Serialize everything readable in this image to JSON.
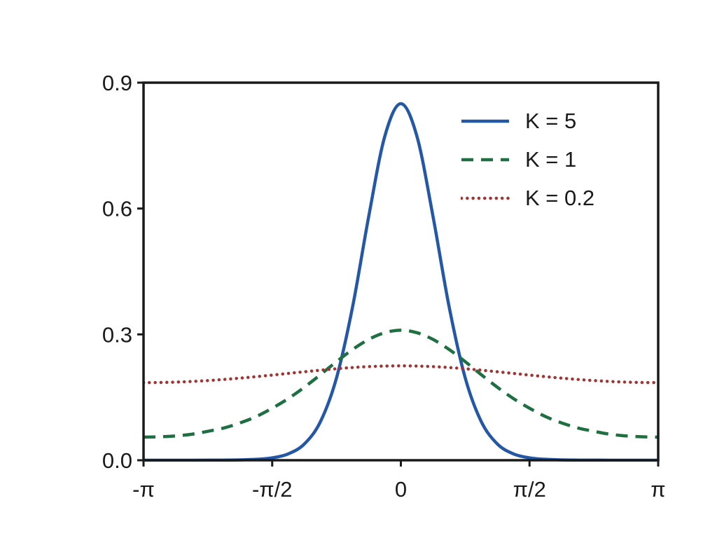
{
  "figure": {
    "background": "#ffffff",
    "frame_color": "#1a1a1a",
    "tick_label_color": "#1a1a1a"
  },
  "chart_data": {
    "type": "line",
    "title": "",
    "xlabel": "",
    "ylabel": "",
    "x_unit": "multiples_of_pi",
    "xlim": [
      -1,
      1
    ],
    "ylim": [
      0,
      0.9
    ],
    "grid": false,
    "x_ticks": [
      {
        "value": -1,
        "label": "-π"
      },
      {
        "value": -0.5,
        "label": "-π/2"
      },
      {
        "value": 0,
        "label": "0"
      },
      {
        "value": 0.5,
        "label": "π/2"
      },
      {
        "value": 1,
        "label": "π"
      }
    ],
    "y_ticks": [
      {
        "value": 0.0,
        "label": "0.0"
      },
      {
        "value": 0.3,
        "label": "0.3"
      },
      {
        "value": 0.6,
        "label": "0.6"
      },
      {
        "value": 0.9,
        "label": "0.9"
      }
    ],
    "x": [
      -1,
      -0.9375,
      -0.875,
      -0.8125,
      -0.75,
      -0.6875,
      -0.625,
      -0.5625,
      -0.5,
      -0.4375,
      -0.375,
      -0.3125,
      -0.25,
      -0.1875,
      -0.125,
      -0.0625,
      0,
      0.0625,
      0.125,
      0.1875,
      0.25,
      0.3125,
      0.375,
      0.4375,
      0.5,
      0.5625,
      0.625,
      0.6875,
      0.75,
      0.8125,
      0.875,
      0.9375,
      1
    ],
    "series": [
      {
        "name": "K = 5",
        "color": "#2457a5",
        "style": "solid",
        "values": [
          0.0,
          0.0,
          0.0001,
          0.0001,
          0.0002,
          0.0003,
          0.0008,
          0.0022,
          0.0057,
          0.0152,
          0.0388,
          0.0921,
          0.1965,
          0.3659,
          0.5809,
          0.7721,
          0.85,
          0.7721,
          0.5809,
          0.3659,
          0.1965,
          0.0921,
          0.0388,
          0.0152,
          0.0057,
          0.0022,
          0.0008,
          0.0003,
          0.0002,
          0.0001,
          0.0001,
          0.0,
          0.0
        ]
      },
      {
        "name": "K = 1",
        "color": "#1e6f42",
        "style": "dashed",
        "values": [
          0.055,
          0.056,
          0.058,
          0.062,
          0.069,
          0.077,
          0.089,
          0.104,
          0.124,
          0.147,
          0.174,
          0.204,
          0.235,
          0.264,
          0.288,
          0.304,
          0.31,
          0.304,
          0.288,
          0.264,
          0.235,
          0.204,
          0.174,
          0.147,
          0.124,
          0.104,
          0.089,
          0.077,
          0.069,
          0.062,
          0.058,
          0.056,
          0.055
        ]
      },
      {
        "name": "K = 0.2",
        "color": "#a33434",
        "style": "dotted",
        "values": [
          0.185,
          0.1853,
          0.1863,
          0.1878,
          0.1899,
          0.1926,
          0.1957,
          0.1992,
          0.203,
          0.207,
          0.2109,
          0.2147,
          0.2181,
          0.221,
          0.2232,
          0.2245,
          0.225,
          0.2245,
          0.2232,
          0.221,
          0.2181,
          0.2147,
          0.2109,
          0.207,
          0.203,
          0.1992,
          0.1957,
          0.1926,
          0.1899,
          0.1878,
          0.1863,
          0.1853,
          0.185
        ]
      }
    ],
    "legend": {
      "position": "upper right",
      "entries": [
        "K = 5",
        "K = 1",
        "K = 0.2"
      ]
    }
  }
}
